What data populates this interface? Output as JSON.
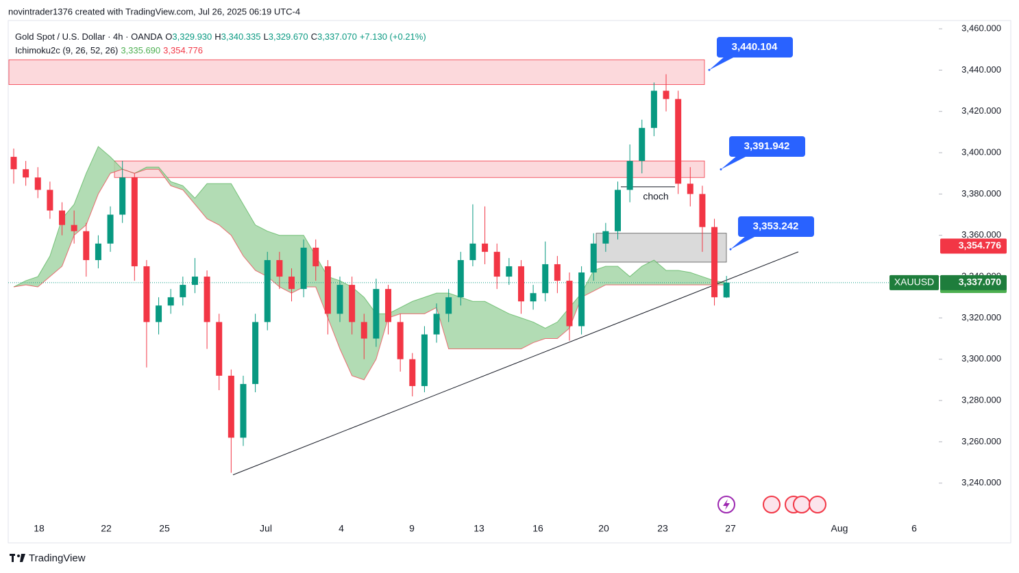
{
  "header": {
    "credit": "novintrader1376 created with TradingView.com, Jul 26, 2025 06:19 UTC-4"
  },
  "footer": {
    "brand": "TradingView"
  },
  "chart_data": {
    "type": "candlestick",
    "title": "Gold Spot / U.S. Dollar · 4h · OANDA",
    "ohlc_legend": [
      {
        "key": "O",
        "text": "3,329.930"
      },
      {
        "key": "H",
        "text": "3,340.335"
      },
      {
        "key": "L",
        "text": "3,329.670"
      },
      {
        "key": "C",
        "text": "3,337.070"
      }
    ],
    "change": "+7.130 (+0.21%)",
    "symbol": "XAUUSD",
    "x_labels": [
      "18",
      "22",
      "25",
      "Jul",
      "4",
      "9",
      "13",
      "16",
      "20",
      "23",
      "27",
      "Aug",
      "6"
    ],
    "open": [
      3398,
      3392,
      3388,
      3382,
      3372,
      3365,
      3362,
      3348,
      3356,
      3370,
      3388,
      3345,
      3318,
      3326,
      3330,
      3336,
      3340,
      3318,
      3292,
      3262,
      3288,
      3318,
      3348,
      3340,
      3334,
      3354,
      3345,
      3322,
      3336,
      3318,
      3310,
      3334,
      3318,
      3300,
      3287,
      3312,
      3322,
      3330,
      3348,
      3356,
      3352,
      3340,
      3345,
      3328,
      3332,
      3346,
      3338,
      3316,
      3342,
      3356,
      3362,
      3382,
      3396,
      3412,
      3430,
      3426,
      3385,
      3380,
      3364,
      3329.93
    ],
    "high": [
      3402,
      3396,
      3393,
      3386,
      3376,
      3372,
      3366,
      3360,
      3374,
      3396,
      3390,
      3348,
      3330,
      3334,
      3340,
      3349,
      3343,
      3322,
      3295,
      3292,
      3322,
      3352,
      3352,
      3344,
      3358,
      3358,
      3348,
      3340,
      3340,
      3322,
      3339,
      3336,
      3322,
      3303,
      3316,
      3327,
      3334,
      3352,
      3375,
      3374,
      3356,
      3349,
      3348,
      3336,
      3357,
      3350,
      3342,
      3345,
      3361,
      3366,
      3386,
      3404,
      3416,
      3434,
      3438,
      3430,
      3393,
      3384,
      3368,
      3340.335
    ],
    "low": [
      3385,
      3384,
      3378,
      3368,
      3360,
      3356,
      3340,
      3344,
      3352,
      3366,
      3338,
      3296,
      3312,
      3322,
      3326,
      3332,
      3305,
      3285,
      3245,
      3258,
      3284,
      3314,
      3334,
      3328,
      3330,
      3338,
      3312,
      3318,
      3312,
      3300,
      3306,
      3312,
      3294,
      3282,
      3284,
      3308,
      3318,
      3326,
      3345,
      3346,
      3334,
      3336,
      3322,
      3324,
      3328,
      3332,
      3309,
      3312,
      3338,
      3352,
      3358,
      3376,
      3390,
      3408,
      3420,
      3380,
      3374,
      3352,
      3326,
      3329.67
    ],
    "close": [
      3392,
      3388,
      3382,
      3372,
      3365,
      3362,
      3348,
      3356,
      3370,
      3388,
      3345,
      3318,
      3326,
      3330,
      3336,
      3340,
      3318,
      3292,
      3262,
      3288,
      3318,
      3348,
      3340,
      3334,
      3354,
      3345,
      3322,
      3336,
      3318,
      3310,
      3334,
      3318,
      3300,
      3287,
      3312,
      3322,
      3330,
      3348,
      3356,
      3352,
      3340,
      3345,
      3328,
      3332,
      3346,
      3338,
      3316,
      3342,
      3356,
      3362,
      3382,
      3396,
      3412,
      3430,
      3426,
      3385,
      3380,
      3364,
      3330,
      3337.07
    ],
    "up_color": "#089981",
    "down_color": "#f23645",
    "last_price": {
      "value": 3337.07,
      "label": "3,337.070"
    },
    "indicator": {
      "name": "Ichimoku2c (9, 26, 52, 26)",
      "span_a": [
        3335,
        3338,
        3340,
        3350,
        3368,
        3375,
        3390,
        3403,
        3398,
        3392,
        3390,
        3393,
        3393,
        3386,
        3384,
        3378,
        3385,
        3385,
        3385,
        3375,
        3365,
        3362,
        3360,
        3360,
        3360,
        3350,
        3340,
        3338,
        3335,
        3330,
        3322,
        3322,
        3325,
        3328,
        3330,
        3332,
        3332,
        3330,
        3328,
        3328,
        3325,
        3322,
        3320,
        3318,
        3315,
        3318,
        3325,
        3332,
        3343,
        3345,
        3345,
        3340,
        3345,
        3348,
        3343,
        3343,
        3342,
        3340,
        3338,
        3337
      ],
      "span_b": [
        3335,
        3336,
        3335,
        3340,
        3345,
        3360,
        3365,
        3380,
        3390,
        3392,
        3390,
        3392,
        3392,
        3384,
        3382,
        3375,
        3368,
        3365,
        3360,
        3350,
        3343,
        3340,
        3335,
        3332,
        3335,
        3335,
        3320,
        3305,
        3292,
        3290,
        3300,
        3320,
        3322,
        3322,
        3322,
        3325,
        3305,
        3305,
        3305,
        3305,
        3305,
        3305,
        3305,
        3308,
        3310,
        3310,
        3315,
        3330,
        3333,
        3336,
        3336,
        3336,
        3336,
        3336,
        3336,
        3336,
        3336,
        3336,
        3336,
        3336
      ],
      "values": [
        3335.69,
        3354.776
      ],
      "value_labels": [
        "3,335.690",
        "3,354.776"
      ],
      "colors": [
        "#4caf50",
        "#f23645"
      ],
      "fill": "#a5d6a7"
    },
    "zones": [
      {
        "top": 3445,
        "bottom": 3433,
        "color": "#fcd5d8"
      },
      {
        "top": 3396,
        "bottom": 3388,
        "color": "#fcd5d8"
      },
      {
        "top": 3361,
        "bottom": 3347,
        "color": "#d6d6d6"
      }
    ],
    "choch": {
      "value": 3383.5,
      "label": "choch"
    },
    "callouts": [
      {
        "value": 3440.104,
        "label": "3,440.104"
      },
      {
        "value": 3391.942,
        "label": "3,391.942"
      },
      {
        "value": 3353.242,
        "label": "3,353.242"
      }
    ],
    "callout_color": "#2962ff",
    "trendline": [
      3244,
      3352
    ],
    "ylim": [
      3222,
      3464
    ],
    "yticks": [
      {
        "value": 3240,
        "label": "3,240.000"
      },
      {
        "value": 3260,
        "label": "3,260.000"
      },
      {
        "value": 3280,
        "label": "3,280.000"
      },
      {
        "value": 3300,
        "label": "3,300.000"
      },
      {
        "value": 3320,
        "label": "3,320.000"
      },
      {
        "value": 3340,
        "label": "3,340.000"
      },
      {
        "value": 3360,
        "label": "3,360.000"
      },
      {
        "value": 3380,
        "label": "3,380.000"
      },
      {
        "value": 3400,
        "label": "3,400.000"
      },
      {
        "value": 3420,
        "label": "3,420.000"
      },
      {
        "value": 3440,
        "label": "3,440.000"
      },
      {
        "value": 3460,
        "label": "3,460.000"
      }
    ]
  }
}
